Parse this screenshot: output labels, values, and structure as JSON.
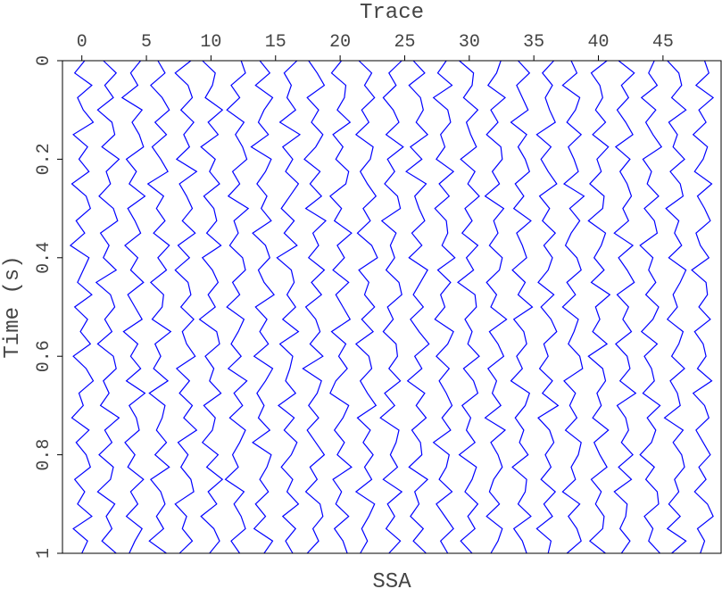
{
  "chart_data": {
    "type": "wiggle",
    "title": "SSA",
    "xlabel": "Trace",
    "ylabel": "Time (s)",
    "color": "#0000ff",
    "xlim": [
      -1.5,
      49.5
    ],
    "xticks": [
      0,
      5,
      10,
      15,
      20,
      25,
      30,
      35,
      40,
      45
    ],
    "ylim": [
      0,
      1
    ],
    "yticks": [
      0,
      0.2,
      0.4,
      0.6,
      0.8,
      1
    ],
    "t": [
      0,
      0.025,
      0.05,
      0.075,
      0.1,
      0.125,
      0.15,
      0.175,
      0.2,
      0.225,
      0.25,
      0.275,
      0.3,
      0.325,
      0.35,
      0.375,
      0.4,
      0.425,
      0.45,
      0.475,
      0.5,
      0.525,
      0.55,
      0.575,
      0.6,
      0.625,
      0.65,
      0.675,
      0.7,
      0.725,
      0.75,
      0.775,
      0.8,
      0.825,
      0.85,
      0.875,
      0.9,
      0.925,
      0.95,
      0.975,
      1
    ],
    "series": [
      {
        "x": 0,
        "values": [
          0.2,
          -0.5,
          0.7,
          -0.3,
          0.1,
          0.8,
          -0.6,
          0.4,
          -0.2,
          0.5,
          -0.7,
          0.3,
          0.6,
          -0.4,
          0.2,
          -0.8,
          0.5,
          0.1,
          -0.3,
          0.7,
          -0.5,
          0.4,
          -0.1,
          0.6,
          -0.6,
          0.3,
          0.8,
          -0.2,
          0.1,
          -0.7,
          0.5,
          -0.4,
          0.3,
          0.6,
          -0.5,
          0.2,
          -0.3,
          0.7,
          -0.6,
          0.4,
          0
        ]
      },
      {
        "x": 2,
        "values": [
          -0.3,
          0.6,
          -0.2,
          0.4,
          -0.7,
          0.3,
          0.5,
          -0.4,
          0.8,
          -0.1,
          0.2,
          -0.6,
          0.4,
          0.7,
          -0.5,
          0.1,
          -0.3,
          0.6,
          -0.8,
          0.2,
          0.5,
          -0.2,
          0.3,
          -0.7,
          0.4,
          0.6,
          -0.3,
          0.1,
          -0.5,
          0.8,
          -0.2,
          0.3,
          -0.6,
          0.4,
          0.2,
          -0.7,
          0.5,
          -0.1,
          0.3,
          -0.4,
          0.6
        ]
      },
      {
        "x": 4,
        "values": [
          0.5,
          -0.2,
          0.3,
          -0.8,
          0.6,
          -0.1,
          0.4,
          0.7,
          -0.5,
          0.2,
          -0.3,
          0.8,
          -0.4,
          0.1,
          0.5,
          -0.6,
          0.3,
          -0.2,
          0.7,
          -0.4,
          0.1,
          0.6,
          -0.7,
          0.3,
          -0.2,
          0.5,
          -0.5,
          0.8,
          -0.3,
          0.2,
          0.4,
          -0.6,
          0.1,
          -0.4,
          0.7,
          -0.2,
          0.3,
          -0.5,
          0.6,
          0.1,
          -0.3
        ]
      },
      {
        "x": 6,
        "values": [
          -0.1,
          0.4,
          -0.6,
          0.2,
          0.7,
          -0.3,
          0.5,
          -0.5,
          0.1,
          0.6,
          -0.8,
          0.3,
          -0.2,
          0.4,
          -0.4,
          0.7,
          -0.1,
          0.5,
          -0.6,
          0.3,
          0.2,
          -0.5,
          0.8,
          -0.3,
          0.1,
          -0.4,
          0.6,
          -0.7,
          0.4,
          0.2,
          -0.2,
          0.5,
          -0.3,
          0.7,
          -0.6,
          0.1,
          0.4,
          -0.2,
          0.3,
          -0.7,
          0.5
        ]
      },
      {
        "x": 8,
        "values": [
          0.4,
          -0.7,
          0.2,
          0.5,
          -0.3,
          0.6,
          -0.1,
          0.3,
          -0.6,
          0.8,
          -0.4,
          0.1,
          0.5,
          -0.2,
          0.7,
          -0.5,
          0.3,
          -0.7,
          0.2,
          0.4,
          -0.3,
          0.6,
          -0.2,
          0.1,
          0.7,
          -0.6,
          0.3,
          -0.4,
          0.5,
          -0.1,
          0.8,
          -0.5,
          0.2,
          -0.3,
          0.4,
          0.6,
          -0.7,
          0.1,
          -0.2,
          0.5,
          -0.4
        ]
      },
      {
        "x": 10,
        "values": [
          -0.6,
          0.3,
          0.1,
          -0.4,
          0.8,
          -0.2,
          0.5,
          -0.7,
          0.3,
          -0.1,
          0.6,
          -0.5,
          0.2,
          0.4,
          -0.3,
          0.7,
          -0.6,
          0.1,
          0.5,
          -0.2,
          0.3,
          -0.8,
          0.4,
          0.6,
          -0.4,
          0.2,
          -0.1,
          0.7,
          -0.5,
          0.3,
          0.1,
          -0.6,
          0.5,
          -0.3,
          0.8,
          -0.2,
          0.4,
          -0.7,
          0.2,
          0.6,
          -0.1
        ]
      },
      {
        "x": 12,
        "values": [
          0.3,
          0.6,
          -0.4,
          0.2,
          -0.7,
          0.5,
          -0.1,
          0.4,
          0.7,
          -0.3,
          0.2,
          -0.6,
          0.8,
          -0.2,
          0.1,
          -0.5,
          0.4,
          0.6,
          -0.3,
          0.2,
          -0.7,
          0.5,
          0.1,
          -0.4,
          0.3,
          -0.6,
          0.7,
          -0.2,
          0.4,
          -0.5,
          0.6,
          0.2,
          -0.3,
          0.1,
          -0.8,
          0.5,
          -0.2,
          0.3,
          0.6,
          -0.4,
          0.2
        ]
      },
      {
        "x": 14,
        "values": [
          -0.2,
          0.5,
          -0.5,
          0.7,
          0.1,
          -0.3,
          0.4,
          -0.8,
          0.6,
          0.2,
          -0.4,
          0.3,
          -0.1,
          0.6,
          -0.7,
          0.2,
          0.5,
          -0.3,
          0.1,
          0.8,
          -0.5,
          0.3,
          -0.2,
          0.4,
          -0.6,
          0.7,
          0.2,
          -0.4,
          0.1,
          -0.3,
          0.5,
          -0.7,
          0.6,
          0.3,
          -0.2,
          0.4,
          -0.5,
          0.2,
          -0.6,
          0.7,
          0.1
        ]
      },
      {
        "x": 16,
        "values": [
          0.6,
          -0.3,
          0.2,
          -0.1,
          0.5,
          -0.6,
          0.8,
          -0.4,
          0.3,
          -0.2,
          0.7,
          0.1,
          -0.5,
          0.4,
          -0.3,
          0.6,
          -0.8,
          0.2,
          0.4,
          -0.1,
          0.5,
          -0.4,
          0.7,
          -0.6,
          0.3,
          0.1,
          -0.2,
          0.5,
          -0.7,
          0.4,
          -0.3,
          0.6,
          0.2,
          -0.5,
          0.3,
          -0.1,
          0.7,
          -0.4,
          0.5,
          -0.2,
          0.3
        ]
      },
      {
        "x": 18,
        "values": [
          -0.4,
          0.2,
          0.7,
          -0.5,
          0.3,
          -0.2,
          0.6,
          0.1,
          -0.7,
          0.4,
          -0.3,
          0.5,
          -0.6,
          0.8,
          -0.1,
          0.3,
          -0.4,
          0.7,
          -0.2,
          0.5,
          -0.6,
          0.1,
          0.4,
          -0.3,
          0.6,
          -0.8,
          0.5,
          0.2,
          -0.4,
          0.3,
          -0.5,
          0.1,
          0.7,
          -0.3,
          0.2,
          -0.6,
          0.4,
          0.6,
          -0.1,
          0.3,
          -0.5
        ]
      },
      {
        "x": 20,
        "values": [
          0.1,
          -0.6,
          0.4,
          0.3,
          -0.2,
          0.7,
          -0.5,
          0.2,
          -0.3,
          0.6,
          0.4,
          -0.7,
          0.1,
          -0.4,
          0.8,
          -0.2,
          0.3,
          -0.5,
          0.6,
          -0.3,
          0.2,
          0.7,
          -0.6,
          0.4,
          -0.1,
          0.5,
          -0.3,
          -0.7,
          0.6,
          0.2,
          -0.4,
          0.3,
          -0.2,
          0.8,
          -0.5,
          0.1,
          -0.3,
          0.6,
          -0.4,
          0.2,
          0.5
        ]
      },
      {
        "x": 22,
        "values": [
          -0.5,
          0.4,
          -0.1,
          0.6,
          -0.3,
          0.2,
          -0.7,
          0.5,
          0.3,
          -0.4,
          0.1,
          0.7,
          -0.2,
          0.3,
          -0.6,
          0.4,
          0.8,
          -0.5,
          0.2,
          -0.1,
          0.6,
          -0.3,
          0.5,
          -0.7,
          0.2,
          0.4,
          -0.4,
          0.1,
          0.7,
          -0.6,
          0.3,
          -0.2,
          0.5,
          -0.1,
          0.4,
          -0.7,
          0.6,
          0.2,
          -0.3,
          0.1,
          -0.4
        ]
      },
      {
        "x": 24,
        "values": [
          0.7,
          -0.2,
          0.3,
          -0.6,
          0.1,
          0.5,
          -0.4,
          0.8,
          -0.3,
          0.2,
          -0.5,
          0.4,
          0.6,
          -0.7,
          0.3,
          -0.1,
          0.2,
          -0.4,
          0.5,
          0.7,
          -0.3,
          0.1,
          -0.6,
          0.3,
          0.4,
          -0.2,
          0.6,
          -0.5,
          0.2,
          -0.8,
          0.5,
          0.3,
          -0.1,
          0.4,
          -0.6,
          0.7,
          -0.3,
          0.2,
          -0.4,
          0.6,
          -0.2
        ]
      },
      {
        "x": 26,
        "values": [
          -0.3,
          0.5,
          -0.6,
          0.2,
          0.4,
          -0.1,
          0.7,
          -0.5,
          0.3,
          -0.8,
          0.6,
          -0.2,
          0.1,
          0.5,
          -0.4,
          0.3,
          -0.6,
          0.7,
          0.2,
          -0.3,
          0.4,
          -0.5,
          0.1,
          0.8,
          -0.2,
          0.3,
          -0.7,
          0.5,
          -0.1,
          0.6,
          -0.4,
          0.2,
          0.3,
          -0.6,
          0.7,
          -0.2,
          0.1,
          -0.5,
          0.4,
          -0.3,
          0.6
        ]
      },
      {
        "x": 28,
        "values": [
          0.2,
          -0.4,
          0.6,
          -0.7,
          0.3,
          0.5,
          -0.2,
          0.1,
          -0.5,
          0.7,
          -0.3,
          0.4,
          -0.6,
          0.2,
          0.3,
          -0.1,
          0.8,
          -0.4,
          0.5,
          -0.2,
          0.1,
          -0.6,
          0.7,
          0.3,
          -0.5,
          0.4,
          -0.3,
          0.2,
          0.6,
          -0.1,
          0.5,
          -0.7,
          0.4,
          0.2,
          -0.3,
          0.6,
          -0.5,
          0.1,
          0.7,
          -0.2,
          0.3
        ]
      },
      {
        "x": 30,
        "values": [
          -0.7,
          0.3,
          0.2,
          -0.4,
          0.6,
          -0.2,
          0.1,
          0.5,
          -0.6,
          0.4,
          -0.1,
          0.7,
          -0.3,
          0.2,
          -0.5,
          0.6,
          -0.2,
          0.3,
          -0.8,
          0.4,
          0.5,
          -0.3,
          0.2,
          -0.1,
          0.7,
          -0.4,
          0.3,
          0.6,
          -0.5,
          0.1,
          -0.2,
          0.4,
          -0.7,
          0.5,
          0.2,
          -0.3,
          0.6,
          -0.1,
          0.4,
          -0.6,
          0.2
        ]
      },
      {
        "x": 32,
        "values": [
          0.4,
          0.1,
          -0.5,
          0.7,
          -0.3,
          0.2,
          -0.6,
          0.4,
          0.5,
          -0.2,
          0.3,
          -0.7,
          0.6,
          -0.1,
          0.2,
          -0.4,
          0.5,
          0.3,
          -0.6,
          0.1,
          -0.3,
          0.8,
          -0.4,
          0.2,
          0.6,
          -0.5,
          0.1,
          -0.2,
          0.4,
          -0.7,
          0.7,
          -0.3,
          0.2,
          0.5,
          -0.1,
          -0.4,
          0.3,
          -0.6,
          0.5,
          0.2,
          -0.3
        ]
      },
      {
        "x": 34,
        "values": [
          -0.2,
          0.6,
          -0.3,
          0.1,
          0.5,
          -0.7,
          0.4,
          -0.2,
          0.3,
          0.6,
          -0.4,
          0.2,
          -0.5,
          0.7,
          -0.3,
          0.1,
          0.4,
          -0.6,
          0.3,
          -0.2,
          0.8,
          -0.5,
          0.2,
          0.4,
          -0.3,
          0.1,
          -0.7,
          0.6,
          0.3,
          -0.4,
          0.2,
          -0.1,
          0.5,
          -0.6,
          0.4,
          0.3,
          -0.2,
          0.7,
          -0.5,
          0.1,
          0.4
        ]
      },
      {
        "x": 36,
        "values": [
          0.5,
          -0.3,
          0.4,
          -0.1,
          0.2,
          0.6,
          -0.7,
          0.3,
          -0.4,
          0.1,
          0.7,
          -0.5,
          0.2,
          -0.3,
          0.6,
          -0.2,
          0.4,
          0.1,
          -0.6,
          0.5,
          -0.4,
          0.3,
          0.7,
          -0.2,
          0.1,
          -0.5,
          0.4,
          -0.3,
          0.8,
          -0.6,
          0.2,
          0.5,
          -0.1,
          0.3,
          -0.4,
          0.6,
          -0.2,
          0.4,
          -0.7,
          0.3,
          0.1
        ]
      },
      {
        "x": 38,
        "values": [
          -0.1,
          0.3,
          -0.7,
          0.5,
          0.2,
          -0.4,
          0.6,
          -0.3,
          0.1,
          0.4,
          -0.6,
          0.8,
          -0.2,
          0.5,
          -0.1,
          -0.5,
          0.3,
          0.6,
          -0.4,
          0.2,
          -0.7,
          0.4,
          0.1,
          -0.3,
          0.5,
          0.7,
          -0.6,
          0.2,
          -0.2,
          0.3,
          -0.5,
          0.6,
          0.4,
          -0.1,
          0.2,
          -0.7,
          0.5,
          -0.3,
          0.3,
          0.6,
          -0.4
        ]
      },
      {
        "x": 40,
        "values": [
          0.6,
          -0.5,
          0.1,
          0.3,
          -0.2,
          0.5,
          -0.4,
          0.7,
          -0.1,
          0.2,
          -0.6,
          0.4,
          0.3,
          -0.7,
          0.5,
          0.2,
          -0.3,
          0.4,
          -0.5,
          0.8,
          -0.2,
          0.1,
          -0.4,
          0.6,
          -0.7,
          0.3,
          0.5,
          -0.1,
          0.2,
          -0.4,
          0.7,
          -0.3,
          0.1,
          0.6,
          -0.5,
          0.2,
          -0.2,
          0.4,
          0.3,
          -0.6,
          0.5
        ]
      },
      {
        "x": 42,
        "values": [
          -0.4,
          0.7,
          -0.2,
          0.3,
          -0.5,
          0.1,
          0.6,
          -0.6,
          0.4,
          -0.3,
          0.2,
          0.5,
          -0.1,
          0.3,
          -0.7,
          0.6,
          -0.4,
          0.2,
          0.7,
          -0.5,
          0.3,
          -0.1,
          0.5,
          -0.6,
          0.2,
          0.4,
          -0.3,
          0.8,
          -0.5,
          0.1,
          0.3,
          -0.2,
          0.6,
          -0.4,
          0.5,
          -0.7,
          0.2,
          0.1,
          -0.3,
          0.4,
          -0.2
        ]
      },
      {
        "x": 44,
        "values": [
          0.3,
          -0.1,
          0.5,
          -0.6,
          0.4,
          -0.3,
          0.2,
          0.8,
          -0.5,
          0.1,
          -0.2,
          0.6,
          -0.4,
          0.3,
          0.5,
          -0.7,
          0.2,
          -0.1,
          0.4,
          -0.3,
          0.6,
          0.2,
          -0.6,
          0.5,
          -0.4,
          0.1,
          0.3,
          -0.5,
          0.7,
          -0.2,
          0.4,
          0.1,
          -0.7,
          0.3,
          -0.3,
          0.5,
          0.6,
          -0.4,
          0.2,
          -0.1,
          0.7
        ]
      },
      {
        "x": 46,
        "values": [
          -0.6,
          0.2,
          0.4,
          -0.3,
          0.7,
          -0.5,
          0.1,
          -0.2,
          0.6,
          -0.4,
          0.3,
          0.5,
          -0.7,
          0.2,
          -0.1,
          0.4,
          -0.5,
          0.7,
          0.3,
          -0.2,
          0.1,
          -0.6,
          0.5,
          0.2,
          -0.3,
          0.6,
          -0.4,
          0.1,
          0.3,
          -0.8,
          0.5,
          -0.2,
          0.4,
          0.6,
          -0.1,
          0.2,
          -0.5,
          0.3,
          -0.6,
          0.7,
          -0.3
        ]
      },
      {
        "x": 48,
        "values": [
          0.2,
          0.5,
          -0.4,
          0.8,
          -0.2,
          0.3,
          -0.6,
          0.4,
          0.1,
          -0.5,
          0.7,
          -0.3,
          0.2,
          0.6,
          -0.4,
          -0.1,
          0.5,
          -0.7,
          0.3,
          0.4,
          -0.2,
          0.6,
          -0.5,
          0.1,
          0.3,
          -0.3,
          0.7,
          -0.6,
          0.2,
          0.5,
          -0.4,
          0.1,
          0.6,
          -0.2,
          0.3,
          -0.5,
          0.4,
          0.8,
          -0.3,
          0.2,
          -0.1
        ]
      }
    ]
  }
}
